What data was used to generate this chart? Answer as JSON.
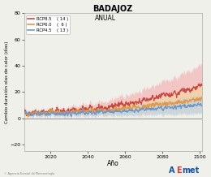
{
  "title": "BADAJOZ",
  "subtitle": "ANUAL",
  "xlabel": "Año",
  "ylabel": "Cambio duración olas de calor (días)",
  "xlim": [
    2006,
    2101
  ],
  "ylim": [
    -25,
    80
  ],
  "yticks": [
    -20,
    0,
    20,
    40,
    60,
    80
  ],
  "xticks": [
    2020,
    2040,
    2060,
    2080,
    2100
  ],
  "legend_entries": [
    {
      "label": "RCP8.5",
      "value": "( 14 )",
      "color": "#cc4444",
      "fill": "#f2b0b0"
    },
    {
      "label": "RCP6.0",
      "value": "(  6 )",
      "color": "#e8963a",
      "fill": "#f5d8a0"
    },
    {
      "label": "RCP4.5",
      "value": "( 13 )",
      "color": "#6699cc",
      "fill": "#b8d0e8"
    }
  ],
  "hline_y": 0,
  "hline_color": "#999999",
  "background_color": "#f0f0eb",
  "plot_bg": "#f0f0eb",
  "seed": 42,
  "n_steps": 1140,
  "start_year": 2006
}
